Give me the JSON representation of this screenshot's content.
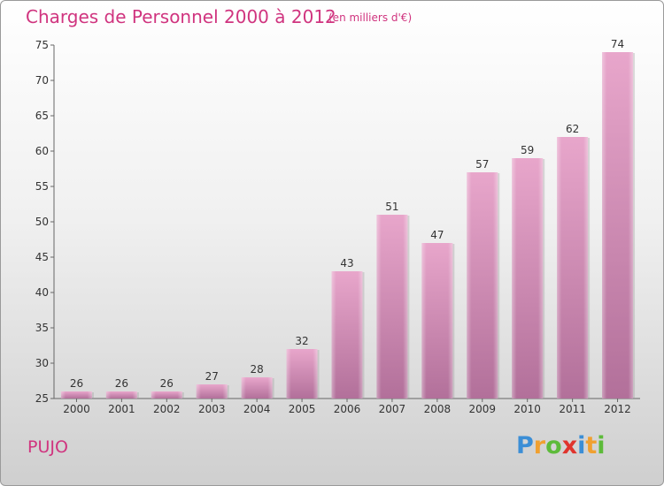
{
  "header": {
    "title": "Charges de Personnel 2000 à 2012",
    "subtitle": "(en milliers d'€)"
  },
  "footer": {
    "commune": "PUJO",
    "logo": [
      "P",
      "r",
      "o",
      "x",
      "i",
      "t",
      "i"
    ]
  },
  "colors": {
    "title": "#d0347f",
    "bar_top": "#e8a6cb",
    "bar_bottom": "#b2709a"
  },
  "chart_data": {
    "type": "bar",
    "title": "Charges de Personnel 2000 à 2012",
    "subtitle": "(en milliers d'€)",
    "xlabel": "",
    "ylabel": "",
    "categories": [
      "2000",
      "2001",
      "2002",
      "2003",
      "2004",
      "2005",
      "2006",
      "2007",
      "2008",
      "2009",
      "2010",
      "2011",
      "2012"
    ],
    "values": [
      26,
      26,
      26,
      27,
      28,
      32,
      43,
      51,
      47,
      57,
      59,
      62,
      74
    ],
    "ylim": [
      25,
      75
    ],
    "yticks": [
      25,
      30,
      35,
      40,
      45,
      50,
      55,
      60,
      65,
      70,
      75
    ],
    "grid": false
  }
}
